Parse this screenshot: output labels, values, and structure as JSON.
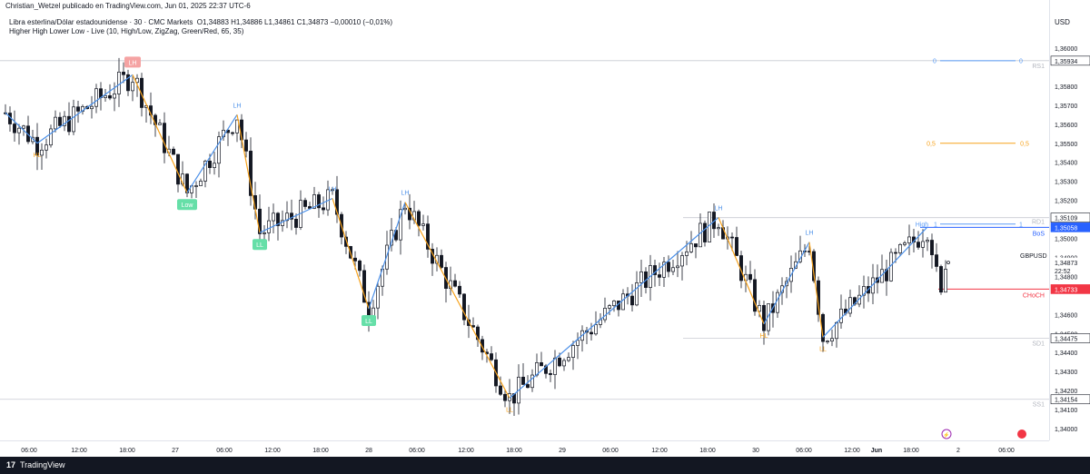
{
  "header": {
    "published": "Christian_Wetzel publicado en TradingView.com, Jun 01, 2025 22:37 UTC-6"
  },
  "legend": {
    "symbol_line": "Libra esterlina/Dólar estadounidense · 30 · CMC Markets",
    "ohlc": "O1,34883  H1,34886  L1,34861  C1,34873  −0,00010 (−0,01%)",
    "indicator": "Higher High Lower Low - Live (10, High/Low, ZigZag, Green/Red, 65, 35)"
  },
  "price_axis": {
    "currency": "USD",
    "ticks": [
      "1,36000",
      "1,35800",
      "1,35700",
      "1,35600",
      "1,35500",
      "1,35400",
      "1,35300",
      "1,35200",
      "1,35000",
      "1,34900",
      "1,34800",
      "1,34600",
      "1,34500",
      "1,34400",
      "1,34300",
      "1,34200",
      "1,34100",
      "1,34000"
    ],
    "badges": [
      {
        "label": "1,35934",
        "color": "#ffffff",
        "text": "#131722",
        "border": "#131722"
      },
      {
        "label": "1,35109",
        "color": "#ffffff",
        "text": "#131722",
        "border": "#131722"
      },
      {
        "label": "1,35058",
        "color": "#2962ff",
        "text": "#ffffff",
        "border": "#2962ff"
      },
      {
        "label": "1,34873",
        "color": "#ffffff",
        "text": "#131722",
        "border": "#ffffff"
      },
      {
        "label": "1,34733",
        "color": "#f23645",
        "text": "#ffffff",
        "border": "#f23645"
      },
      {
        "label": "1,34475",
        "color": "#ffffff",
        "text": "#131722",
        "border": "#131722"
      },
      {
        "label": "1,34154",
        "color": "#ffffff",
        "text": "#131722",
        "border": "#131722"
      }
    ],
    "symbol_label": "GBPUSD",
    "countdown": "22:52"
  },
  "time_axis": {
    "ticks": [
      "06:00",
      "12:00",
      "18:00",
      "27",
      "06:00",
      "12:00",
      "18:00",
      "28",
      "06:00",
      "12:00",
      "18:00",
      "29",
      "06:00",
      "12:00",
      "18:00",
      "30",
      "06:00",
      "12:00",
      "Jun",
      "18:00",
      "2",
      "06:00"
    ]
  },
  "levels": {
    "rs1": "RS1",
    "rd1": "RD1",
    "sd1": "SD1",
    "ss1": "SS1",
    "fib0_left": "0",
    "fib0_right": "0",
    "fib05_left": "0,5",
    "fib05_right": "0,5",
    "fib1_left": "1",
    "fib1_right": "1",
    "high": "High",
    "bos": "BoS",
    "choch": "CHoCH"
  },
  "chart_data": {
    "type": "candlestick",
    "title": "Libra esterlina/Dólar estadounidense · 30 · CMC Markets",
    "ylabel": "USD",
    "ylim": [
      1.3395,
      1.361
    ],
    "x_ticks": [
      "06:00",
      "12:00",
      "18:00",
      "27",
      "06:00",
      "12:00",
      "18:00",
      "28",
      "06:00",
      "12:00",
      "18:00",
      "29",
      "06:00",
      "12:00",
      "18:00",
      "30",
      "06:00",
      "12:00",
      "Jun",
      "18:00",
      "2",
      "06:00"
    ],
    "zigzag": [
      {
        "t": 0,
        "price": 1.3566,
        "color": "blue"
      },
      {
        "t": 7,
        "price": 1.355,
        "label": "HL",
        "color": "blue"
      },
      {
        "t": 28,
        "price": 1.3586,
        "label": "LH",
        "color": "orange"
      },
      {
        "t": 40,
        "price": 1.3524,
        "label": "Low",
        "color": "blue"
      },
      {
        "t": 51,
        "price": 1.3565,
        "label": "LH",
        "color": "orange"
      },
      {
        "t": 56,
        "price": 1.3503,
        "label": "LL",
        "color": "blue"
      },
      {
        "t": 72,
        "price": 1.3521,
        "label": "LH",
        "color": "orange"
      },
      {
        "t": 80,
        "price": 1.3463,
        "label": "LL",
        "color": "blue"
      },
      {
        "t": 88,
        "price": 1.3519,
        "label": "LH",
        "color": "orange"
      },
      {
        "t": 111,
        "price": 1.3416,
        "label": "LL",
        "color": "blue"
      },
      {
        "t": 157,
        "price": 1.3511,
        "label": "LH",
        "color": "orange"
      },
      {
        "t": 167,
        "price": 1.3455,
        "label": "HL",
        "color": "blue"
      },
      {
        "t": 177,
        "price": 1.3498,
        "label": "LH",
        "color": "orange"
      },
      {
        "t": 180,
        "price": 1.3448,
        "label": "LL",
        "color": "blue"
      },
      {
        "t": 203,
        "price": 1.3506,
        "label": "High",
        "color": "blue"
      }
    ],
    "levels": [
      {
        "name": "RS1",
        "price": 1.35934
      },
      {
        "name": "RD1",
        "price": 1.35109
      },
      {
        "name": "BoS",
        "price": 1.35058
      },
      {
        "name": "CHoCH",
        "price": 1.34733
      },
      {
        "name": "SD1",
        "price": 1.34475
      },
      {
        "name": "SS1",
        "price": 1.34154
      },
      {
        "name": "Fib 0",
        "price": 1.35934
      },
      {
        "name": "Fib 0,5",
        "price": 1.355
      },
      {
        "name": "Fib 1",
        "price": 1.35075
      }
    ],
    "last_close": 1.34873
  }
}
